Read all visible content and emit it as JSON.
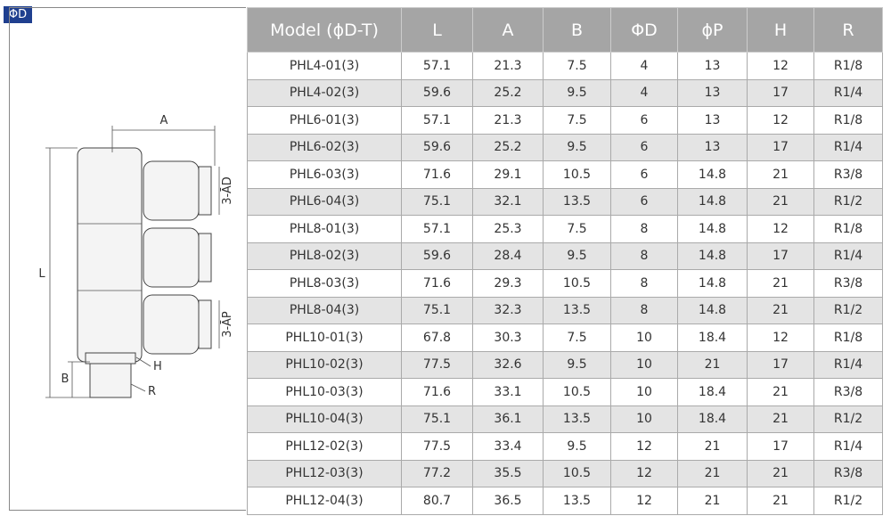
{
  "badge": "ΦD",
  "diagram": {
    "labels": {
      "a": "A",
      "l": "L",
      "b": "B",
      "h": "H",
      "r": "R",
      "d": "3-ĀD",
      "p": "3-ĀP"
    }
  },
  "table": {
    "header": [
      "Model (ϕD-T)",
      "L",
      "A",
      "B",
      "ΦD",
      "ϕP",
      "H",
      "R"
    ],
    "rows": [
      [
        "PHL4-01(3)",
        57.1,
        21.3,
        7.5,
        4,
        13,
        12,
        "R1/8"
      ],
      [
        "PHL4-02(3)",
        59.6,
        25.2,
        9.5,
        4,
        13,
        17,
        "R1/4"
      ],
      [
        "PHL6-01(3)",
        57.1,
        21.3,
        7.5,
        6,
        13,
        12,
        "R1/8"
      ],
      [
        "PHL6-02(3)",
        59.6,
        25.2,
        9.5,
        6,
        13,
        17,
        "R1/4"
      ],
      [
        "PHL6-03(3)",
        71.6,
        29.1,
        10.5,
        6,
        14.8,
        21,
        "R3/8"
      ],
      [
        "PHL6-04(3)",
        75.1,
        32.1,
        13.5,
        6,
        14.8,
        21,
        "R1/2"
      ],
      [
        "PHL8-01(3)",
        57.1,
        25.3,
        7.5,
        8,
        14.8,
        12,
        "R1/8"
      ],
      [
        "PHL8-02(3)",
        59.6,
        28.4,
        9.5,
        8,
        14.8,
        17,
        "R1/4"
      ],
      [
        "PHL8-03(3)",
        71.6,
        29.3,
        10.5,
        8,
        14.8,
        21,
        "R3/8"
      ],
      [
        "PHL8-04(3)",
        75.1,
        32.3,
        13.5,
        8,
        14.8,
        21,
        "R1/2"
      ],
      [
        "PHL10-01(3)",
        67.8,
        30.3,
        7.5,
        10,
        18.4,
        12,
        "R1/8"
      ],
      [
        "PHL10-02(3)",
        77.5,
        32.6,
        9.5,
        10,
        21,
        17,
        "R1/4"
      ],
      [
        "PHL10-03(3)",
        71.6,
        33.1,
        10.5,
        10,
        18.4,
        21,
        "R3/8"
      ],
      [
        "PHL10-04(3)",
        75.1,
        36.1,
        13.5,
        10,
        18.4,
        21,
        "R1/2"
      ],
      [
        "PHL12-02(3)",
        77.5,
        33.4,
        9.5,
        12,
        21,
        17,
        "R1/4"
      ],
      [
        "PHL12-03(3)",
        77.2,
        35.5,
        10.5,
        12,
        21,
        21,
        "R3/8"
      ],
      [
        "PHL12-04(3)",
        80.7,
        36.5,
        13.5,
        12,
        21,
        21,
        "R1/2"
      ]
    ]
  }
}
